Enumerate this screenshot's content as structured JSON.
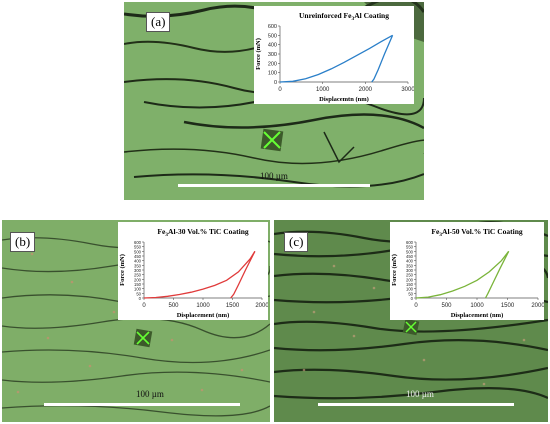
{
  "panels": [
    {
      "label": "(a)",
      "scale_label": "100 µm",
      "chart_data": {
        "type": "line",
        "title": "Unreinforced  Fe3Al Coating",
        "title_parts": [
          "Unreinforced  Fe",
          "3",
          "Al Coating"
        ],
        "xlabel": "Displacemtn (nm)",
        "ylabel": "Force (mN)",
        "xlim": [
          0,
          3000
        ],
        "ylim": [
          0,
          600
        ],
        "xticks": [
          "0",
          "1000",
          "2000",
          "3000"
        ],
        "yticks": [
          "0",
          "100",
          "200",
          "300",
          "400",
          "500",
          "600"
        ],
        "color": "#2a7fc9",
        "series": [
          {
            "x": [
              0,
              300,
              600,
              900,
              1200,
              1500,
              1800,
              2100,
              2400,
              2640
            ],
            "y": [
              0,
              8,
              35,
              80,
              140,
              210,
              285,
              360,
              440,
              500
            ]
          },
          {
            "x": [
              2640,
              2450,
              2300,
              2200,
              2150
            ],
            "y": [
              500,
              300,
              130,
              30,
              0
            ]
          }
        ]
      }
    },
    {
      "label": "(b)",
      "scale_label": "100 µm",
      "chart_data": {
        "type": "line",
        "title": "Fe3Al-30 Vol.% TiC Coating",
        "title_parts": [
          "Fe",
          "3",
          "Al-30 Vol.% TiC Coating"
        ],
        "xlabel": "Displacement (nm)",
        "ylabel": "Force (mN)",
        "xlim": [
          0,
          2000
        ],
        "ylim": [
          0,
          600
        ],
        "xticks": [
          "0",
          "500",
          "1000",
          "1500",
          "2000"
        ],
        "yticks": [
          "0",
          "50",
          "100",
          "150",
          "200",
          "250",
          "300",
          "350",
          "400",
          "450",
          "500",
          "550",
          "600"
        ],
        "color": "#e03b3b",
        "series": [
          {
            "x": [
              0,
              200,
              400,
              600,
              800,
              1000,
              1200,
              1400,
              1600,
              1800,
              1880
            ],
            "y": [
              0,
              5,
              18,
              38,
              62,
              95,
              135,
              190,
              280,
              420,
              500
            ]
          },
          {
            "x": [
              1880,
              1720,
              1600,
              1520,
              1470
            ],
            "y": [
              500,
              300,
              140,
              40,
              0
            ]
          }
        ]
      }
    },
    {
      "label": "(c)",
      "scale_label": "100 µm",
      "chart_data": {
        "type": "line",
        "title": "Fe3Al-50 Vol.% TiC Coating",
        "title_parts": [
          "Fe",
          "3",
          "Al-50 Vol.% TiC Coating"
        ],
        "xlabel": "Displacement (nm)",
        "ylabel": "Force (mN)",
        "xlim": [
          0,
          2000
        ],
        "ylim": [
          0,
          600
        ],
        "xticks": [
          "0",
          "500",
          "1000",
          "1500",
          "2000"
        ],
        "yticks": [
          "0",
          "50",
          "100",
          "150",
          "200",
          "250",
          "300",
          "350",
          "400",
          "450",
          "500",
          "550",
          "600"
        ],
        "color": "#7ab43a",
        "series": [
          {
            "x": [
              0,
              200,
              400,
              600,
              800,
              1000,
              1200,
              1400,
              1520
            ],
            "y": [
              0,
              10,
              35,
              75,
              125,
              190,
              280,
              400,
              500
            ]
          },
          {
            "x": [
              1520,
              1380,
              1260,
              1180,
              1140
            ],
            "y": [
              500,
              320,
              160,
              50,
              0
            ]
          }
        ]
      }
    }
  ]
}
